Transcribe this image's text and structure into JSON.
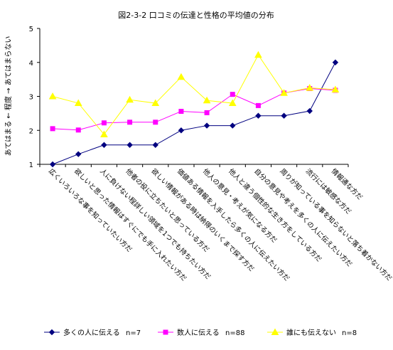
{
  "chart_data": {
    "type": "line",
    "title": "図2-3-2 口コミの伝達と性格の平均値の分布",
    "ylabel": "あてはまる ← 程度 → あてはまらない",
    "ylim": [
      1,
      5
    ],
    "yticks": [
      1,
      2,
      3,
      4,
      5
    ],
    "grid": false,
    "legend_position": "bottom",
    "categories": [
      "広くいろいろな事を知っていたい方だ",
      "欲しいと思った情報はすぐにでも手に入れたい方だ",
      "人に負けない程詳しい領域を1つでも持ちたい方だ",
      "他者の役に立ちたいと思っている方だ",
      "欲しい情報がある時は納得のいくまで探す方だ",
      "価値ある情報を入手したら多くの人に伝えたい方だ",
      "他人の意見・考えが気になる方だ",
      "他人と違う個性的な生き方をしている方だ",
      "自分の意見や考えを多くの人に伝えたい方だ",
      "周りが知っている事を知らないと落ち着かない方だ",
      "流行には敏感な方だ",
      "情報通な方だ"
    ],
    "series": [
      {
        "name": "多くの人に伝える",
        "count_label": "n=7",
        "color": "#000080",
        "marker": "diamond",
        "values": [
          1.0,
          1.3,
          1.57,
          1.57,
          1.57,
          2.0,
          2.14,
          2.14,
          2.43,
          2.43,
          2.57,
          4.0
        ]
      },
      {
        "name": "数人に伝える",
        "count_label": "n=88",
        "color": "#ff00ff",
        "marker": "square",
        "values": [
          2.05,
          2.01,
          2.22,
          2.24,
          2.24,
          2.56,
          2.52,
          3.06,
          2.73,
          3.1,
          3.23,
          3.18
        ]
      },
      {
        "name": "誰にも伝えない",
        "count_label": "n=8",
        "color": "#ffff00",
        "marker": "triangle",
        "values": [
          3.0,
          2.8,
          1.88,
          2.9,
          2.8,
          3.57,
          2.88,
          2.8,
          4.22,
          3.1,
          3.25,
          3.2
        ]
      }
    ]
  }
}
